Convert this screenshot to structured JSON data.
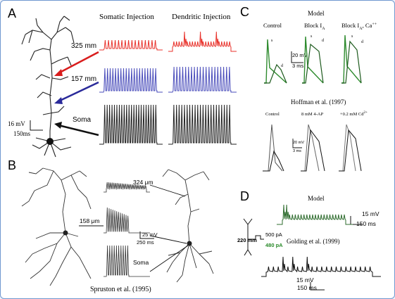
{
  "panels": {
    "A": {
      "letter": "A",
      "col_somatic": "Somatic Injection",
      "col_dendritic": "Dendritic Injection",
      "row_labels": [
        "325 mm",
        "157 mm",
        "Soma"
      ],
      "scale_v": "16 mV",
      "scale_t": "150ms",
      "row_colors": [
        "#e8322b",
        "#4a4dbb",
        "#222222"
      ],
      "arrow_colors": [
        "#d91d1d",
        "#2a2a9a",
        "#111111"
      ]
    },
    "B": {
      "letter": "B",
      "row_labels": [
        "324 μm",
        "158 μm",
        "Soma"
      ],
      "scale_v": "25 mV",
      "scale_t": "250 ms",
      "caption": "Spruston et al. (1995)"
    },
    "C": {
      "letter": "C",
      "model_title": "Model",
      "col_labels": [
        "Control",
        "Block I",
        "Block I"
      ],
      "col_subs": [
        "",
        "A",
        "A"
      ],
      "col_suffix": [
        "",
        "",
        ", Ca"
      ],
      "col_sup": [
        "",
        "",
        "++"
      ],
      "scale_v": "20 mV",
      "scale_t": "3 ms",
      "trace_s": "s",
      "trace_d": "d",
      "exp_title": "Hoffman et al. (1997)",
      "exp_col_labels": [
        "Control",
        "8 mM 4-AP",
        "+0.2 mM Cd"
      ],
      "exp_col_sup": [
        "",
        "",
        "2+"
      ],
      "exp_scale_v": "20 mV",
      "exp_scale_t": "3 ms",
      "model_color": "#2e8b2e"
    },
    "D": {
      "letter": "D",
      "model_title": "Model",
      "exp_title": "Golding et al. (1999)",
      "scale_v": "15 mV",
      "scale_t": "150 ms",
      "exp_scale_v": "15 mV",
      "exp_scale_t": "150 ms",
      "distance": "220 mm",
      "current_1": "500 pA",
      "current_2": "480 pA",
      "model_color": "#2f6d2f",
      "current_2_color": "#2a8a2a"
    }
  }
}
